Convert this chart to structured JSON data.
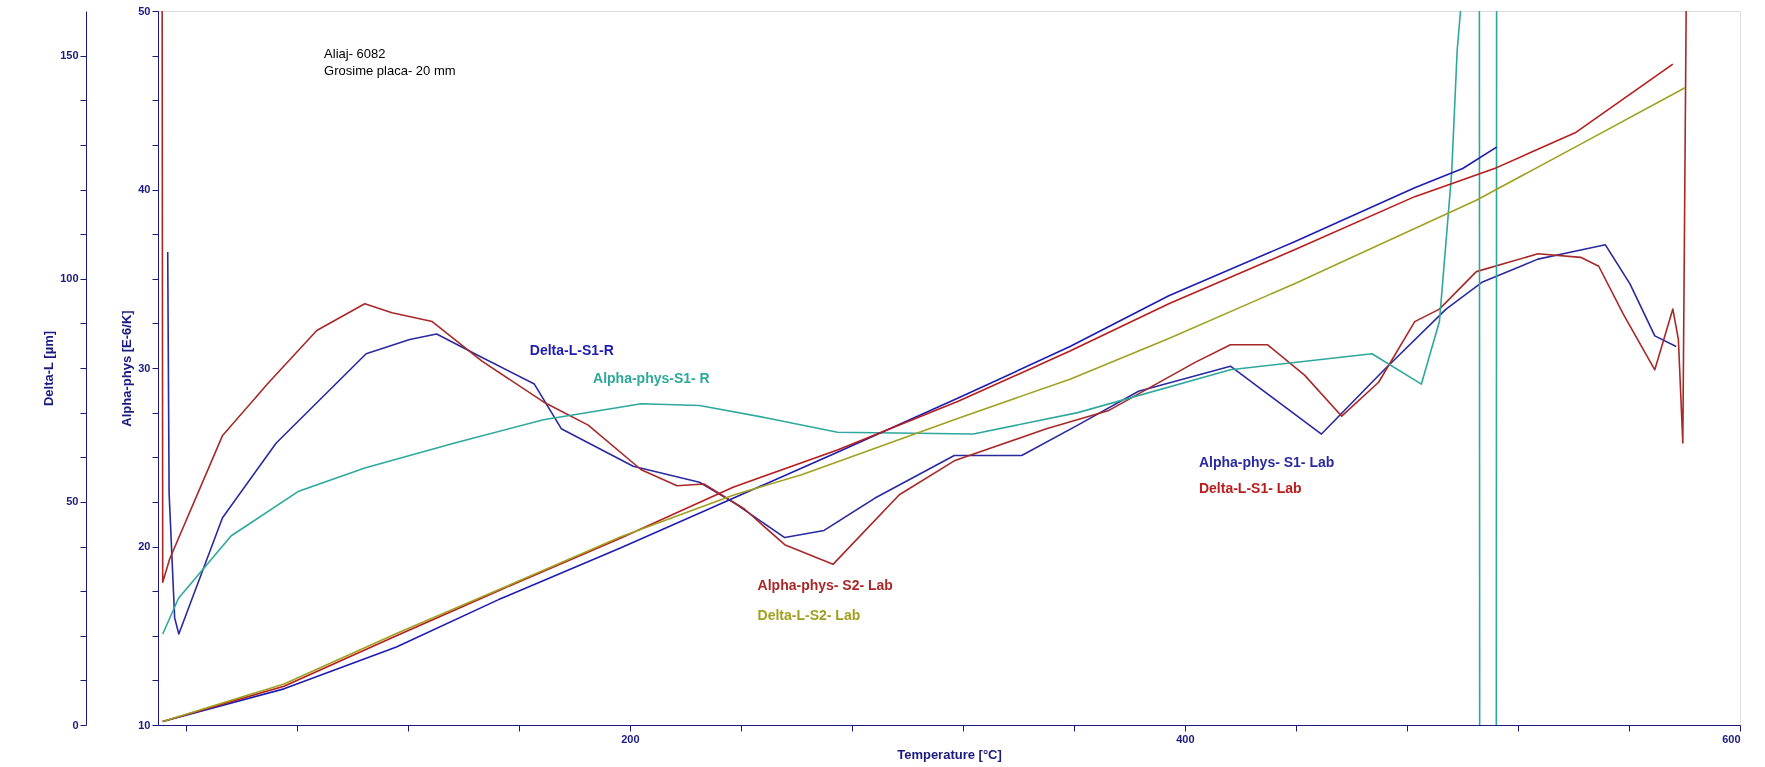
{
  "chart_data": {
    "type": "line",
    "xlabel": "Temperature [°C]",
    "ylabel": "Delta-L [µm]",
    "y2label": "Alpha-phys [E-6/K]",
    "annotations": [
      "Aliaj- 6082",
      "Grosime placa- 20 mm"
    ],
    "xlim": [
      30,
      600
    ],
    "xticks": [
      {
        "value": 40,
        "label": null
      },
      {
        "value": 80,
        "label": null
      },
      {
        "value": 120,
        "label": null
      },
      {
        "value": 160,
        "label": null
      },
      200,
      {
        "value": 240,
        "label": null
      },
      {
        "value": 280,
        "label": null
      },
      {
        "value": 320,
        "label": null
      },
      {
        "value": 360,
        "label": null
      },
      400,
      {
        "value": 440,
        "label": null
      },
      {
        "value": 480,
        "label": null
      },
      {
        "value": 520,
        "label": null
      },
      {
        "value": 560,
        "label": null
      },
      600
    ],
    "ylim": [
      0,
      160
    ],
    "yticks": [
      0,
      {
        "value": 10,
        "label": null
      },
      {
        "value": 20,
        "label": null
      },
      {
        "value": 30,
        "label": null
      },
      {
        "value": 40,
        "label": null
      },
      50,
      {
        "value": 60,
        "label": null
      },
      {
        "value": 70,
        "label": null
      },
      {
        "value": 80,
        "label": null
      },
      {
        "value": 90,
        "label": null
      },
      100,
      {
        "value": 110,
        "label": null
      },
      {
        "value": 120,
        "label": null
      },
      {
        "value": 130,
        "label": null
      },
      {
        "value": 140,
        "label": null
      },
      150
    ],
    "y2lim": [
      10,
      50
    ],
    "y2ticks": [
      10,
      {
        "value": 12.5,
        "label": null
      },
      {
        "value": 15,
        "label": null
      },
      {
        "value": 17.5,
        "label": null
      },
      20,
      {
        "value": 22.5,
        "label": null
      },
      {
        "value": 25,
        "label": null
      },
      {
        "value": 27.5,
        "label": null
      },
      30,
      {
        "value": 32.5,
        "label": null
      },
      {
        "value": 35,
        "label": null
      },
      {
        "value": 37.5,
        "label": null
      },
      40,
      {
        "value": 42.5,
        "label": null
      },
      {
        "value": 45,
        "label": null
      },
      {
        "value": 47.5,
        "label": null
      },
      50
    ],
    "grid": false,
    "series": [
      {
        "name": "Alpha-phys- S1- Lab",
        "color": "#2a2aa0",
        "axis": "y2",
        "x": [
          33.5,
          34,
          36,
          37.5,
          53.2,
          72.6,
          105.0,
          120.7,
          130.4,
          146.6,
          165.6,
          175.3,
          201.2,
          225.1,
          238.0,
          255.8,
          270.0,
          288.2,
          316.9,
          341.2,
          361.4,
          383.3,
          416.4,
          449.2,
          471.8,
          494.1,
          507.0,
          527.2,
          551.5,
          560.4,
          569.3,
          577.0
        ],
        "values": [
          36.5,
          23,
          16,
          15.1,
          21.6,
          25.8,
          30.8,
          31.6,
          31.9,
          30.6,
          29.1,
          26.6,
          24.5,
          23.6,
          22.4,
          20.5,
          20.9,
          22.7,
          25.1,
          25.1,
          26.8,
          28.7,
          30.1,
          26.3,
          29.9,
          33.3,
          34.8,
          36.1,
          36.9,
          34.7,
          31.8,
          31.2
        ]
      },
      {
        "name": "Alpha-phys- S2- Lab",
        "color": "#a82828",
        "axis": "y2",
        "x": [
          31.5,
          31.7,
          34.2,
          53.2,
          69.4,
          87.2,
          104.5,
          114.3,
          128.8,
          146.6,
          168.9,
          185.0,
          204.1,
          217.0,
          226.7,
          241.3,
          255.8,
          273.2,
          297.1,
          316.9,
          350.1,
          372.3,
          403.5,
          416.4,
          429.8,
          443.1,
          456.5,
          469.8,
          482.8,
          491.7,
          505.0,
          527.2,
          542.6,
          549.1,
          558.0,
          569.3,
          575.8,
          577.8,
          579.4,
          580.6
        ],
        "values": [
          50,
          18.0,
          19.3,
          26.2,
          29.1,
          32.1,
          33.6,
          33.1,
          32.6,
          30.4,
          28.1,
          26.8,
          24.3,
          23.4,
          23.5,
          22.1,
          20.1,
          19.0,
          22.9,
          24.8,
          26.6,
          27.6,
          30.3,
          31.3,
          31.3,
          29.6,
          27.3,
          29.2,
          32.6,
          33.3,
          35.4,
          36.4,
          36.2,
          35.7,
          33.0,
          29.9,
          33.3,
          31.6,
          25.8,
          50
        ]
      },
      {
        "name": "Alpha-phys-S1- R",
        "color": "#2ea89c",
        "axis": "y2",
        "x": [
          31.7,
          37.4,
          56.4,
          80.7,
          104.5,
          136.9,
          168.9,
          204.1,
          225.1,
          249.4,
          274.8,
          323.8,
          361.4,
          416.4,
          467.4,
          485.2,
          491.7,
          496.1,
          498.1,
          499.3,
          502,
          506.1,
          506.2,
          509,
          512.2,
          512.3
        ],
        "values": [
          15.1,
          17.1,
          20.6,
          23.1,
          24.4,
          25.8,
          27.1,
          28.0,
          27.9,
          27.2,
          26.4,
          26.3,
          27.5,
          29.9,
          30.8,
          29.1,
          32.6,
          40.9,
          47.8,
          50,
          null,
          50,
          10,
          null,
          10,
          50
        ]
      },
      {
        "name": "Delta-L-S1-R",
        "color": "#1c1cb0",
        "axis": "y",
        "x": [
          31.7,
          75.4,
          115.9,
          152.7,
          196.8,
          237.2,
          274.8,
          318.1,
          358.6,
          394.2,
          439.5,
          482.8,
          500.1,
          512.3
        ],
        "values": [
          0.8,
          8.1,
          17.5,
          28.1,
          39.7,
          50.8,
          61.1,
          73.2,
          84.8,
          96.2,
          108.3,
          120.4,
          124.7,
          129.5
        ]
      },
      {
        "name": "Delta-L-S1- Lab",
        "color": "#b81c1c",
        "axis": "y",
        "x": [
          31.7,
          75.4,
          115.9,
          152.7,
          196.8,
          237.2,
          274.8,
          318.1,
          358.6,
          394.2,
          439.5,
          482.8,
          512.3,
          540.6,
          575.8
        ],
        "values": [
          0.8,
          8.7,
          20.0,
          30.1,
          41.9,
          53.3,
          61.6,
          72.5,
          83.8,
          94.4,
          106.5,
          118.4,
          124.9,
          132.7,
          148.1
        ]
      },
      {
        "name": "Delta-L-S2- Lab",
        "color": "#a0a020",
        "axis": "y",
        "x": [
          31.7,
          75.4,
          115.9,
          152.7,
          196.8,
          237.2,
          261.9,
          318.1,
          358.6,
          394.2,
          439.5,
          505.0,
          540.6,
          580.2
        ],
        "values": [
          0.8,
          9.2,
          20.5,
          30.3,
          42.2,
          51.5,
          56.1,
          68.7,
          77.5,
          86.6,
          98.9,
          117.6,
          129.5,
          142.8
        ]
      }
    ]
  }
}
